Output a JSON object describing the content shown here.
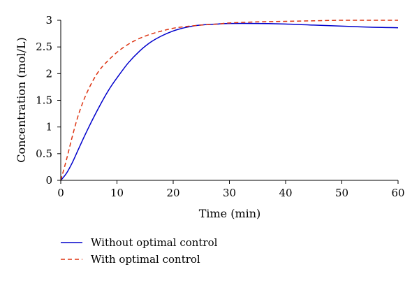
{
  "chart_data": {
    "type": "line",
    "title": "",
    "xlabel": "Time (min)",
    "ylabel": "Concentration (mol/L)",
    "xlim": [
      0,
      60
    ],
    "ylim": [
      0,
      3
    ],
    "x_ticks": [
      0,
      10,
      20,
      30,
      40,
      50,
      60
    ],
    "y_ticks": [
      0,
      0.5,
      1,
      1.5,
      2,
      2.5,
      3
    ],
    "x_tick_labels": [
      "0",
      "10",
      "20",
      "30",
      "40",
      "50",
      "60"
    ],
    "y_tick_labels": [
      "0",
      "0.5",
      "1",
      "1.5",
      "2",
      "2.5",
      "3"
    ],
    "grid": false,
    "legend_position": "bottom-left",
    "series": [
      {
        "name": "Without optimal control",
        "color": "#0000cc",
        "line_style": "solid",
        "x": [
          0,
          1,
          2,
          3,
          4,
          5,
          6,
          7,
          8,
          9,
          10,
          12,
          14,
          16,
          18,
          20,
          22,
          24,
          26,
          28,
          30,
          35,
          40,
          45,
          50,
          55,
          60
        ],
        "y": [
          0,
          0.13,
          0.32,
          0.55,
          0.78,
          1.0,
          1.21,
          1.41,
          1.6,
          1.77,
          1.92,
          2.2,
          2.42,
          2.59,
          2.71,
          2.8,
          2.86,
          2.9,
          2.92,
          2.93,
          2.94,
          2.94,
          2.93,
          2.91,
          2.89,
          2.87,
          2.86
        ]
      },
      {
        "name": "With optimal control",
        "color": "#dd3311",
        "line_style": "dashed",
        "x": [
          0,
          1,
          2,
          3,
          4,
          5,
          6,
          7,
          8,
          10,
          12,
          14,
          16,
          18,
          20,
          22,
          25,
          28,
          30,
          35,
          40,
          45,
          50,
          55,
          60
        ],
        "y": [
          0,
          0.38,
          0.8,
          1.18,
          1.48,
          1.72,
          1.92,
          2.08,
          2.2,
          2.4,
          2.55,
          2.66,
          2.74,
          2.8,
          2.85,
          2.88,
          2.91,
          2.93,
          2.95,
          2.97,
          2.98,
          2.99,
          3.0,
          3.0,
          3.0
        ]
      }
    ]
  }
}
